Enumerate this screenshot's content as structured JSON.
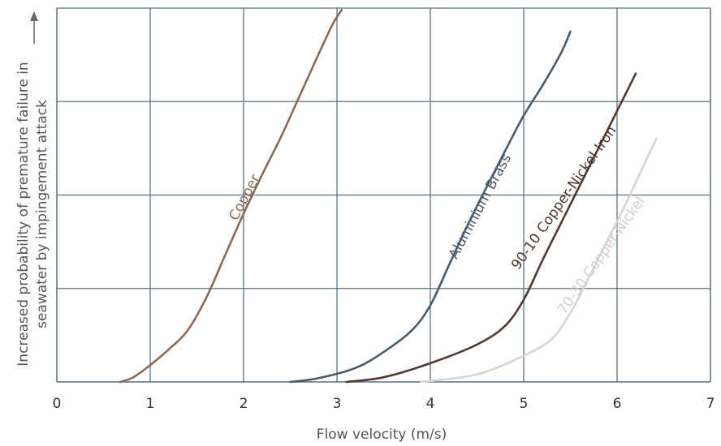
{
  "chart_data": {
    "type": "line",
    "title": "",
    "xlabel": "Flow velocity (m/s)",
    "ylabel": [
      "Increased probability of premature failure in",
      "seawater by impingement attack"
    ],
    "xlim": [
      0,
      7
    ],
    "ylim": [
      0,
      4
    ],
    "x_ticks": [
      "0",
      "1",
      "2",
      "3",
      "4",
      "5",
      "6",
      "7"
    ],
    "y_ticks_labeled": false,
    "grid": true,
    "y_axis_arrow": true,
    "series": [
      {
        "name": "Copper",
        "color": "#8c6a5a",
        "points": [
          [
            0.68,
            0
          ],
          [
            0.82,
            0.05
          ],
          [
            1.0,
            0.18
          ],
          [
            1.2,
            0.35
          ],
          [
            1.4,
            0.55
          ],
          [
            1.6,
            0.9
          ],
          [
            1.8,
            1.35
          ],
          [
            2.0,
            1.8
          ],
          [
            2.2,
            2.22
          ],
          [
            2.4,
            2.62
          ],
          [
            2.6,
            3.06
          ],
          [
            2.8,
            3.5
          ],
          [
            2.95,
            3.82
          ],
          [
            3.05,
            3.98
          ]
        ]
      },
      {
        "name": "Aluminium Brass",
        "color": "#4a5a6a",
        "points": [
          [
            2.5,
            0
          ],
          [
            2.8,
            0.04
          ],
          [
            3.2,
            0.15
          ],
          [
            3.5,
            0.32
          ],
          [
            3.8,
            0.55
          ],
          [
            4.0,
            0.82
          ],
          [
            4.2,
            1.25
          ],
          [
            4.4,
            1.68
          ],
          [
            4.6,
            2.08
          ],
          [
            4.8,
            2.47
          ],
          [
            5.0,
            2.85
          ],
          [
            5.2,
            3.17
          ],
          [
            5.4,
            3.52
          ],
          [
            5.5,
            3.75
          ]
        ]
      },
      {
        "name": "90-10 Copper-Nickel-Iron",
        "color": "#4f3a32",
        "points": [
          [
            3.1,
            0
          ],
          [
            3.5,
            0.05
          ],
          [
            4.0,
            0.2
          ],
          [
            4.5,
            0.4
          ],
          [
            4.8,
            0.6
          ],
          [
            5.0,
            0.88
          ],
          [
            5.2,
            1.3
          ],
          [
            5.4,
            1.7
          ],
          [
            5.6,
            2.1
          ],
          [
            5.8,
            2.5
          ],
          [
            6.0,
            2.9
          ],
          [
            6.2,
            3.3
          ]
        ]
      },
      {
        "name": "70-30 Copper-Nickel",
        "color": "#d5d5d5",
        "points": [
          [
            3.9,
            0
          ],
          [
            4.5,
            0.08
          ],
          [
            5.0,
            0.28
          ],
          [
            5.3,
            0.46
          ],
          [
            5.5,
            0.74
          ],
          [
            5.7,
            1.12
          ],
          [
            5.9,
            1.52
          ],
          [
            6.1,
            1.92
          ],
          [
            6.3,
            2.35
          ],
          [
            6.42,
            2.6
          ]
        ]
      }
    ],
    "annotations": [
      {
        "text": "Copper",
        "series": 0
      },
      {
        "text": "Aluminium Brass",
        "series": 1
      },
      {
        "text": "90-10 Copper-Nickel-Iron",
        "series": 2
      },
      {
        "text": "70-30 Copper-Nickel",
        "series": 3
      }
    ]
  }
}
